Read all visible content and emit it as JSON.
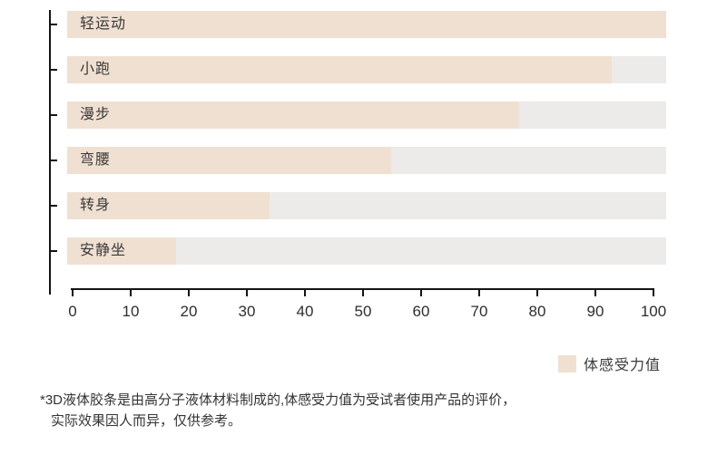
{
  "chart_data": {
    "type": "bar",
    "orientation": "horizontal",
    "title": "",
    "categories": [
      "轻运动",
      "小跑",
      "漫步",
      "弯腰",
      "转身",
      "安静坐"
    ],
    "series": [
      {
        "name": "体感受力值",
        "values": [
          100,
          93,
          77,
          55,
          34,
          18
        ]
      }
    ],
    "xlabel": "",
    "ylabel": "",
    "xlim": [
      0,
      100
    ],
    "x_ticks": [
      "0",
      "10",
      "20",
      "30",
      "40",
      "50",
      "60",
      "70",
      "80",
      "90",
      "100"
    ],
    "grid": false,
    "legend_position": "bottom-right",
    "legend_entries": [
      "体感受力值"
    ],
    "bar_background_track": true,
    "colors": {
      "bar_fill": "#f0e0d1",
      "bar_track": "#ecebe9",
      "axis": "#141414",
      "category_text": "#3a3a3a",
      "tick_text": "#2e2e2e"
    }
  },
  "legend": {
    "label": "体感受力值",
    "swatch_color": "#f0e0d1"
  },
  "footnote": {
    "line1": "*3D液体胶条是由高分子液体材料制成的,体感受力值为受试者使用产品的评价，",
    "line2": "实际效果因人而异，仅供参考。"
  }
}
